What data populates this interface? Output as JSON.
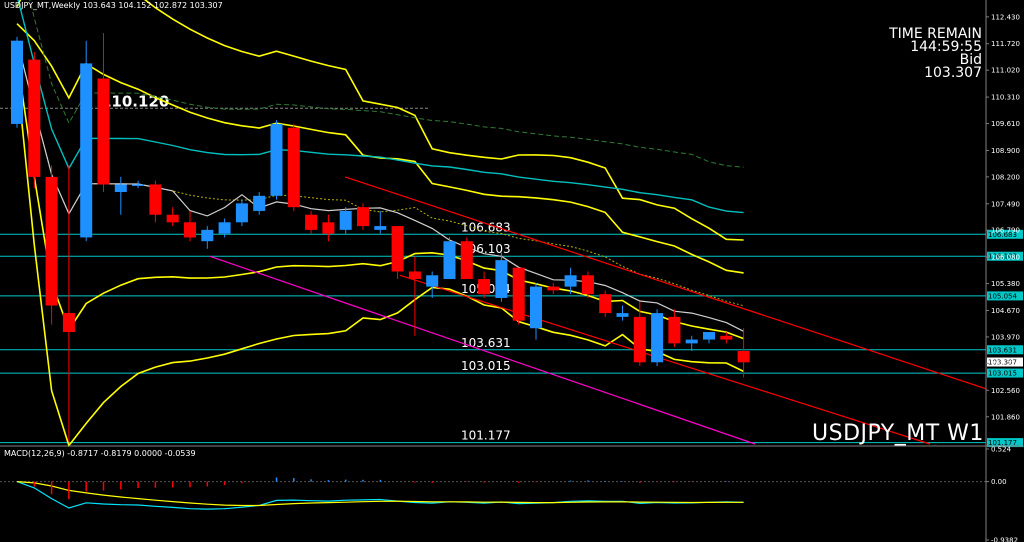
{
  "header": {
    "symbol_timeframe": "USDJPY_MT,Weekly",
    "ohlc": "103.643 104.152 102.872 103.307"
  },
  "info": {
    "time_remain_label": "TIME REMAIN",
    "time_remain_value": "144:59:55",
    "bid_label": "Bid",
    "bid_value": "103.307"
  },
  "symbol_label": "USDJPY_MT W1",
  "macd_header": "MACD(12,26,9) -0.8717 -0.8179 0.0000 -0.0539",
  "colors": {
    "bull": "#1e90ff",
    "bear": "#ff0000",
    "level": "#00c8c8",
    "band": "#ffff00",
    "ma_fast": "#d0d0d0",
    "ma_slow": "#00bfbf",
    "channel": "#ff0000",
    "pink": "#ff00cc"
  },
  "chart_data": [
    {
      "type": "candlestick",
      "title": "USDJPY_MT,Weekly",
      "ylim": [
        101.14,
        112.77
      ],
      "y_ticks": [
        {
          "value": 112.43,
          "label": "112.430"
        },
        {
          "value": 111.72,
          "label": "111.720"
        },
        {
          "value": 111.02,
          "label": "111.020"
        },
        {
          "value": 110.31,
          "label": "110.310"
        },
        {
          "value": 109.61,
          "label": "109.610"
        },
        {
          "value": 108.9,
          "label": "108.900"
        },
        {
          "value": 108.2,
          "label": "108.200"
        },
        {
          "value": 107.49,
          "label": "107.490"
        },
        {
          "value": 106.79,
          "label": "106.790"
        },
        {
          "value": 106.08,
          "label": "106.080"
        },
        {
          "value": 105.38,
          "label": "105.380"
        },
        {
          "value": 104.67,
          "label": "104.670"
        },
        {
          "value": 103.97,
          "label": "103.970"
        },
        {
          "value": 103.27,
          "label": "103.270"
        },
        {
          "value": 102.56,
          "label": "102.560"
        },
        {
          "value": 101.86,
          "label": "101.860"
        }
      ],
      "horizontal_levels": [
        {
          "value": 106.683,
          "label": "106.683"
        },
        {
          "value": 106.103,
          "label": "106.103"
        },
        {
          "value": 105.054,
          "label": "105.054"
        },
        {
          "value": 103.631,
          "label": "103.631"
        },
        {
          "value": 103.015,
          "label": "103.015"
        },
        {
          "value": 101.177,
          "label": "101.177"
        }
      ],
      "current_price": {
        "value": 103.307,
        "label": "103.307"
      },
      "annotation": {
        "value": 110.12,
        "label": "110.120"
      },
      "candles": [
        {
          "o": 109.6,
          "h": 111.9,
          "l": 109.5,
          "c": 111.8
        },
        {
          "o": 111.3,
          "h": 111.5,
          "l": 107.9,
          "c": 108.2
        },
        {
          "o": 108.2,
          "h": 108.5,
          "l": 104.3,
          "c": 104.8
        },
        {
          "o": 104.6,
          "h": 108.5,
          "l": 101.2,
          "c": 104.1
        },
        {
          "o": 106.6,
          "h": 111.8,
          "l": 106.5,
          "c": 111.2
        },
        {
          "o": 110.8,
          "h": 112.0,
          "l": 107.8,
          "c": 108.0
        },
        {
          "o": 107.8,
          "h": 108.2,
          "l": 107.2,
          "c": 108.0
        },
        {
          "o": 108.0,
          "h": 108.1,
          "l": 107.9,
          "c": 108.0
        },
        {
          "o": 108.0,
          "h": 108.1,
          "l": 107.0,
          "c": 107.2
        },
        {
          "o": 107.2,
          "h": 107.4,
          "l": 106.9,
          "c": 107.0
        },
        {
          "o": 107.0,
          "h": 107.3,
          "l": 106.5,
          "c": 106.6
        },
        {
          "o": 106.5,
          "h": 106.9,
          "l": 106.3,
          "c": 106.8
        },
        {
          "o": 106.7,
          "h": 107.1,
          "l": 106.6,
          "c": 107.0
        },
        {
          "o": 107.0,
          "h": 107.6,
          "l": 106.9,
          "c": 107.5
        },
        {
          "o": 107.3,
          "h": 107.8,
          "l": 107.2,
          "c": 107.7
        },
        {
          "o": 107.7,
          "h": 109.7,
          "l": 107.6,
          "c": 109.6
        },
        {
          "o": 109.5,
          "h": 109.6,
          "l": 107.3,
          "c": 107.4
        },
        {
          "o": 107.2,
          "h": 107.3,
          "l": 106.7,
          "c": 106.8
        },
        {
          "o": 107.0,
          "h": 107.2,
          "l": 106.5,
          "c": 106.7
        },
        {
          "o": 106.8,
          "h": 107.4,
          "l": 106.7,
          "c": 107.3
        },
        {
          "o": 107.4,
          "h": 107.5,
          "l": 106.8,
          "c": 106.9
        },
        {
          "o": 106.8,
          "h": 107.3,
          "l": 106.7,
          "c": 106.9
        },
        {
          "o": 106.9,
          "h": 106.9,
          "l": 105.5,
          "c": 105.7
        },
        {
          "o": 105.7,
          "h": 106.1,
          "l": 104.0,
          "c": 105.5
        },
        {
          "o": 105.3,
          "h": 105.7,
          "l": 105.0,
          "c": 105.6
        },
        {
          "o": 105.5,
          "h": 106.6,
          "l": 105.5,
          "c": 106.5
        },
        {
          "o": 106.5,
          "h": 106.6,
          "l": 105.5,
          "c": 105.5
        },
        {
          "o": 105.5,
          "h": 105.7,
          "l": 105.0,
          "c": 105.1
        },
        {
          "o": 105.0,
          "h": 106.2,
          "l": 104.9,
          "c": 106.0
        },
        {
          "o": 105.8,
          "h": 105.8,
          "l": 104.3,
          "c": 104.4
        },
        {
          "o": 104.2,
          "h": 105.4,
          "l": 103.9,
          "c": 105.3
        },
        {
          "o": 105.3,
          "h": 105.4,
          "l": 105.1,
          "c": 105.2
        },
        {
          "o": 105.3,
          "h": 105.8,
          "l": 105.1,
          "c": 105.6
        },
        {
          "o": 105.6,
          "h": 105.7,
          "l": 105.0,
          "c": 105.1
        },
        {
          "o": 105.1,
          "h": 105.2,
          "l": 104.5,
          "c": 104.6
        },
        {
          "o": 104.5,
          "h": 104.8,
          "l": 104.4,
          "c": 104.6
        },
        {
          "o": 104.5,
          "h": 104.9,
          "l": 103.2,
          "c": 103.3
        },
        {
          "o": 103.3,
          "h": 104.7,
          "l": 103.2,
          "c": 104.6
        },
        {
          "o": 104.5,
          "h": 104.7,
          "l": 103.7,
          "c": 103.8
        },
        {
          "o": 103.8,
          "h": 104.0,
          "l": 103.6,
          "c": 103.9
        },
        {
          "o": 103.9,
          "h": 104.1,
          "l": 103.8,
          "c": 104.1
        },
        {
          "o": 104.0,
          "h": 104.1,
          "l": 103.8,
          "c": 103.9
        },
        {
          "o": 103.6,
          "h": 104.2,
          "l": 102.9,
          "c": 103.3
        }
      ]
    },
    {
      "type": "macd",
      "title": "MACD(12,26,9)",
      "values": {
        "macd": -0.8717,
        "signal": -0.8179,
        "hist": -0.0539
      },
      "y_ticks": [
        {
          "value": 0.524,
          "label": "0.524"
        },
        {
          "value": 0.0,
          "label": "0.00"
        },
        {
          "value": -0.9382,
          "label": "-0.9382"
        }
      ]
    }
  ]
}
